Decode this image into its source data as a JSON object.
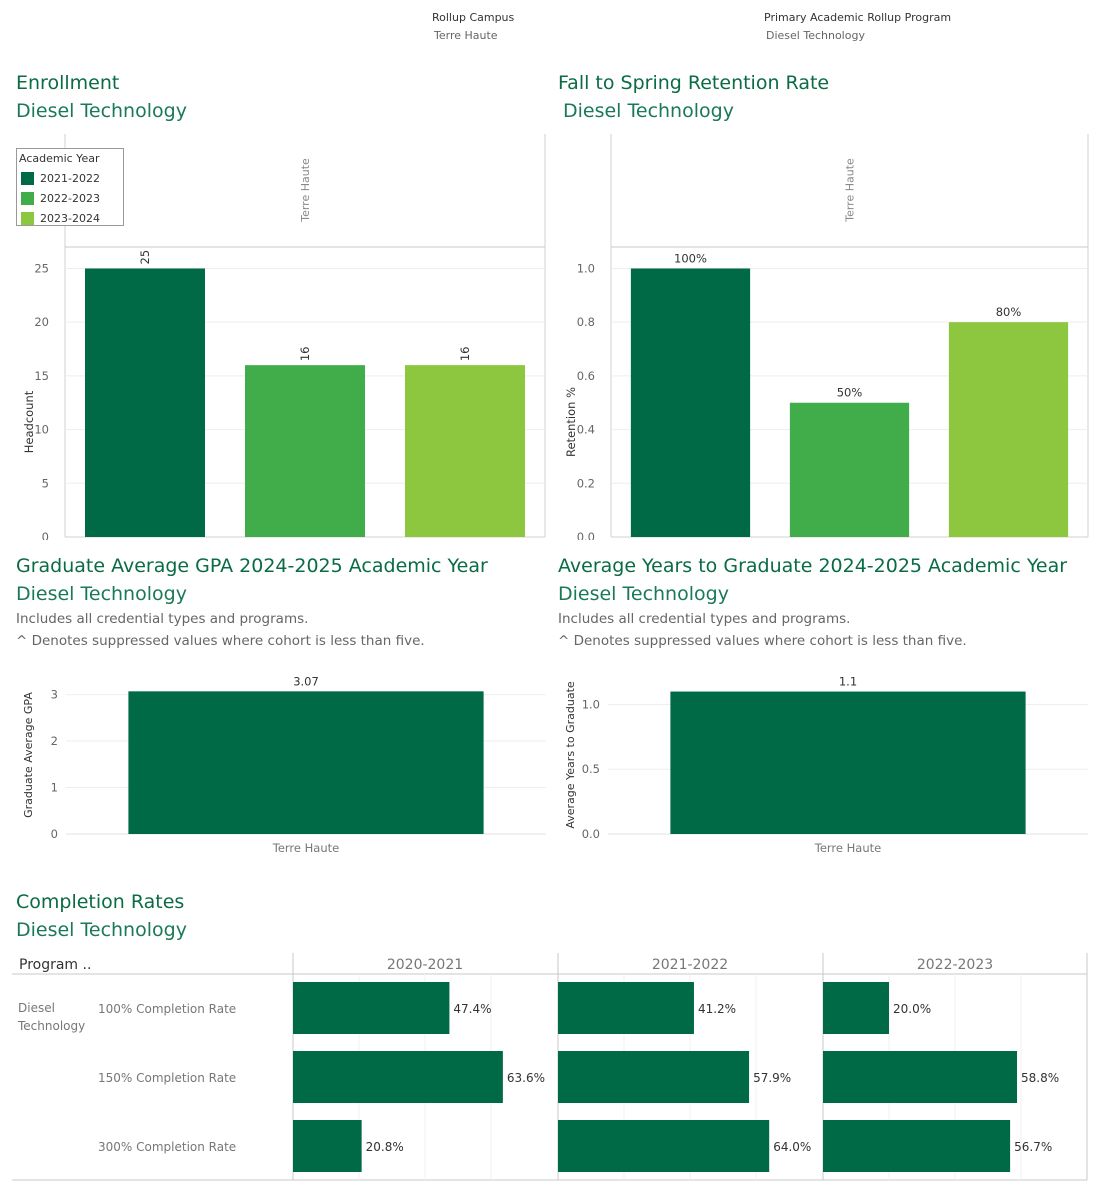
{
  "filters": {
    "campus_label": "Rollup Campus",
    "campus_value": "Terre Haute",
    "program_label": "Primary Academic Rollup Program",
    "program_value": "Diesel Technology"
  },
  "colors": {
    "dark_green": "#006a47",
    "mid_green": "#41ad4a",
    "light_green": "#8dc63f",
    "title_green": "#0a6b45"
  },
  "enrollment": {
    "title": "Enrollment",
    "subtitle": "Diesel Technology",
    "legend": {
      "title": "Academic Year",
      "items": [
        "2021-2022",
        "2022-2023",
        "2023-2024"
      ]
    }
  },
  "retention": {
    "title": "Fall to Spring Retention Rate",
    "subtitle": "Diesel Technology"
  },
  "gpa": {
    "title": "Graduate Average GPA 2024-2025 Academic Year",
    "subtitle": "Diesel Technology",
    "note1": "Includes all credential types and programs.",
    "note2": "^ Denotes suppressed values where cohort is less than five."
  },
  "years": {
    "title": "Average Years to Graduate 2024-2025 Academic Year",
    "subtitle": "Diesel Technology",
    "note1": "Includes all credential types and programs.",
    "note2": "^ Denotes suppressed values where cohort is less than five."
  },
  "completion": {
    "title": "Completion Rates",
    "subtitle": "Diesel Technology",
    "program_header": "Program ..",
    "program_line1": "Diesel",
    "program_line2": "Technology"
  },
  "chart_data": [
    {
      "type": "bar",
      "id": "enrollment",
      "column_header": "Terre Haute",
      "categories": [
        "2021-2022",
        "2022-2023",
        "2023-2024"
      ],
      "values": [
        25,
        16,
        16
      ],
      "labels": [
        "25",
        "16",
        "16"
      ],
      "ylabel": "Headcount",
      "ylim": [
        0,
        27
      ],
      "yticks": [
        0,
        5,
        10,
        15,
        20,
        25
      ],
      "ytick_labels": [
        "0",
        "5",
        "10",
        "15",
        "20",
        "25"
      ],
      "grid": true
    },
    {
      "type": "bar",
      "id": "retention",
      "column_header": "Terre Haute",
      "categories": [
        "2021-2022",
        "2022-2023",
        "2023-2024"
      ],
      "values": [
        1.0,
        0.5,
        0.8
      ],
      "labels": [
        "100%",
        "50%",
        "80%"
      ],
      "ylabel": "Retention %",
      "ylim": [
        0,
        1.08
      ],
      "yticks": [
        0,
        0.2,
        0.4,
        0.6,
        0.8,
        1.0
      ],
      "ytick_labels": [
        "0.0",
        "0.2",
        "0.4",
        "0.6",
        "0.8",
        "1.0"
      ],
      "grid": true
    },
    {
      "type": "bar",
      "id": "gpa",
      "categories": [
        "Terre Haute"
      ],
      "values": [
        3.07
      ],
      "labels": [
        "3.07"
      ],
      "ylabel": "Graduate Average GPA",
      "ylim": [
        0,
        3.4
      ],
      "yticks": [
        0,
        1,
        2,
        3
      ],
      "ytick_labels": [
        "0",
        "1",
        "2",
        "3"
      ],
      "grid": true
    },
    {
      "type": "bar",
      "id": "years",
      "categories": [
        "Terre Haute"
      ],
      "values": [
        1.1
      ],
      "labels": [
        "1.1"
      ],
      "ylabel": "Average Years to Graduate",
      "ylim": [
        0,
        1.22
      ],
      "yticks": [
        0,
        0.5,
        1.0
      ],
      "ytick_labels": [
        "0.0",
        "0.5",
        "1.0"
      ],
      "grid": true
    },
    {
      "type": "bar",
      "id": "completion",
      "orientation": "horizontal",
      "columns": [
        "2020-2021",
        "2021-2022",
        "2022-2023"
      ],
      "rows": [
        "100% Completion Rate",
        "150% Completion Rate",
        "300% Completion Rate"
      ],
      "values": [
        [
          47.4,
          41.2,
          20.0
        ],
        [
          63.6,
          57.9,
          58.8
        ],
        [
          20.8,
          64.0,
          56.7
        ]
      ],
      "labels": [
        [
          "47.4%",
          "41.2%",
          "20.0%"
        ],
        [
          "63.6%",
          "57.9%",
          "58.8%"
        ],
        [
          "20.8%",
          "64.0%",
          "56.7%"
        ]
      ],
      "xlim": [
        0,
        80
      ]
    }
  ]
}
